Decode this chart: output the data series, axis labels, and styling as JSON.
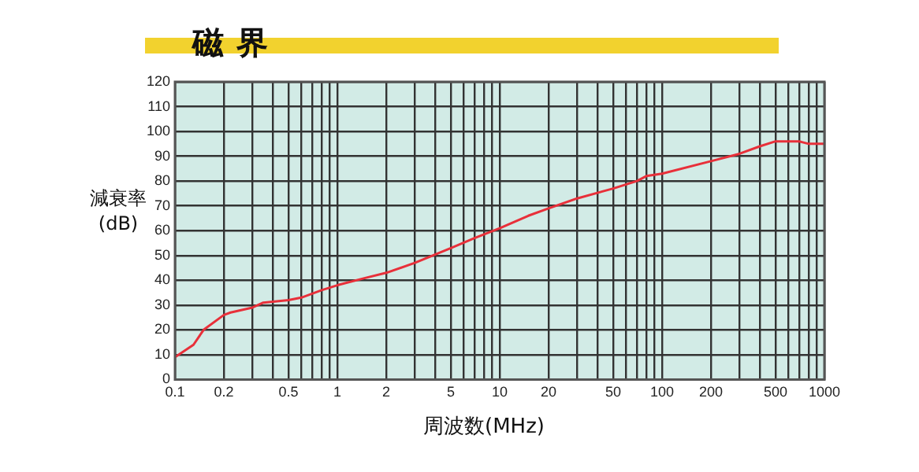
{
  "chart_data": {
    "type": "line",
    "title": "磁界",
    "xlabel": "周波数(MHz)",
    "ylabel": "減衰率(dB)",
    "log": "x",
    "xlim": [
      0.1,
      1000
    ],
    "xticks": [
      0.1,
      0.2,
      {
        "value": 0.3,
        "label": null
      },
      {
        "value": 0.4,
        "label": null
      },
      0.5,
      {
        "value": 0.6,
        "label": null
      },
      {
        "value": 0.7,
        "label": null
      },
      {
        "value": 0.8,
        "label": null
      },
      {
        "value": 0.9,
        "label": null
      },
      1,
      2,
      {
        "value": 3,
        "label": null
      },
      {
        "value": 4,
        "label": null
      },
      5,
      {
        "value": 6,
        "label": null
      },
      {
        "value": 7,
        "label": null
      },
      {
        "value": 8,
        "label": null
      },
      {
        "value": 9,
        "label": null
      },
      10,
      20,
      {
        "value": 30,
        "label": null
      },
      {
        "value": 40,
        "label": null
      },
      50,
      {
        "value": 60,
        "label": null
      },
      {
        "value": 70,
        "label": null
      },
      {
        "value": 80,
        "label": null
      },
      {
        "value": 90,
        "label": null
      },
      100,
      200,
      {
        "value": 300,
        "label": null
      },
      {
        "value": 400,
        "label": null
      },
      500,
      {
        "value": 600,
        "label": null
      },
      {
        "value": 700,
        "label": null
      },
      {
        "value": 800,
        "label": null
      },
      {
        "value": 900,
        "label": null
      },
      1000
    ],
    "ylim": [
      0,
      120
    ],
    "yticks": [
      0,
      10,
      20,
      30,
      40,
      50,
      60,
      70,
      80,
      90,
      100,
      110,
      120
    ],
    "grid": true,
    "marker": "none",
    "line_style": "solid",
    "series": [
      {
        "color": "#e8303a",
        "x": [
          0.1,
          0.13,
          0.15,
          0.2,
          0.22,
          0.3,
          0.35,
          0.5,
          0.6,
          0.8,
          1,
          1.5,
          2,
          3,
          5,
          7,
          10,
          15,
          20,
          30,
          50,
          70,
          80,
          100,
          200,
          300,
          400,
          500,
          700,
          800,
          1000
        ],
        "values": [
          9,
          14,
          20,
          26,
          27,
          29,
          31,
          32,
          33,
          36,
          38,
          41,
          43,
          47,
          53,
          57,
          61,
          66,
          69,
          73,
          77,
          80,
          82,
          83,
          88,
          91,
          94,
          96,
          96,
          95,
          95
        ]
      }
    ]
  }
}
